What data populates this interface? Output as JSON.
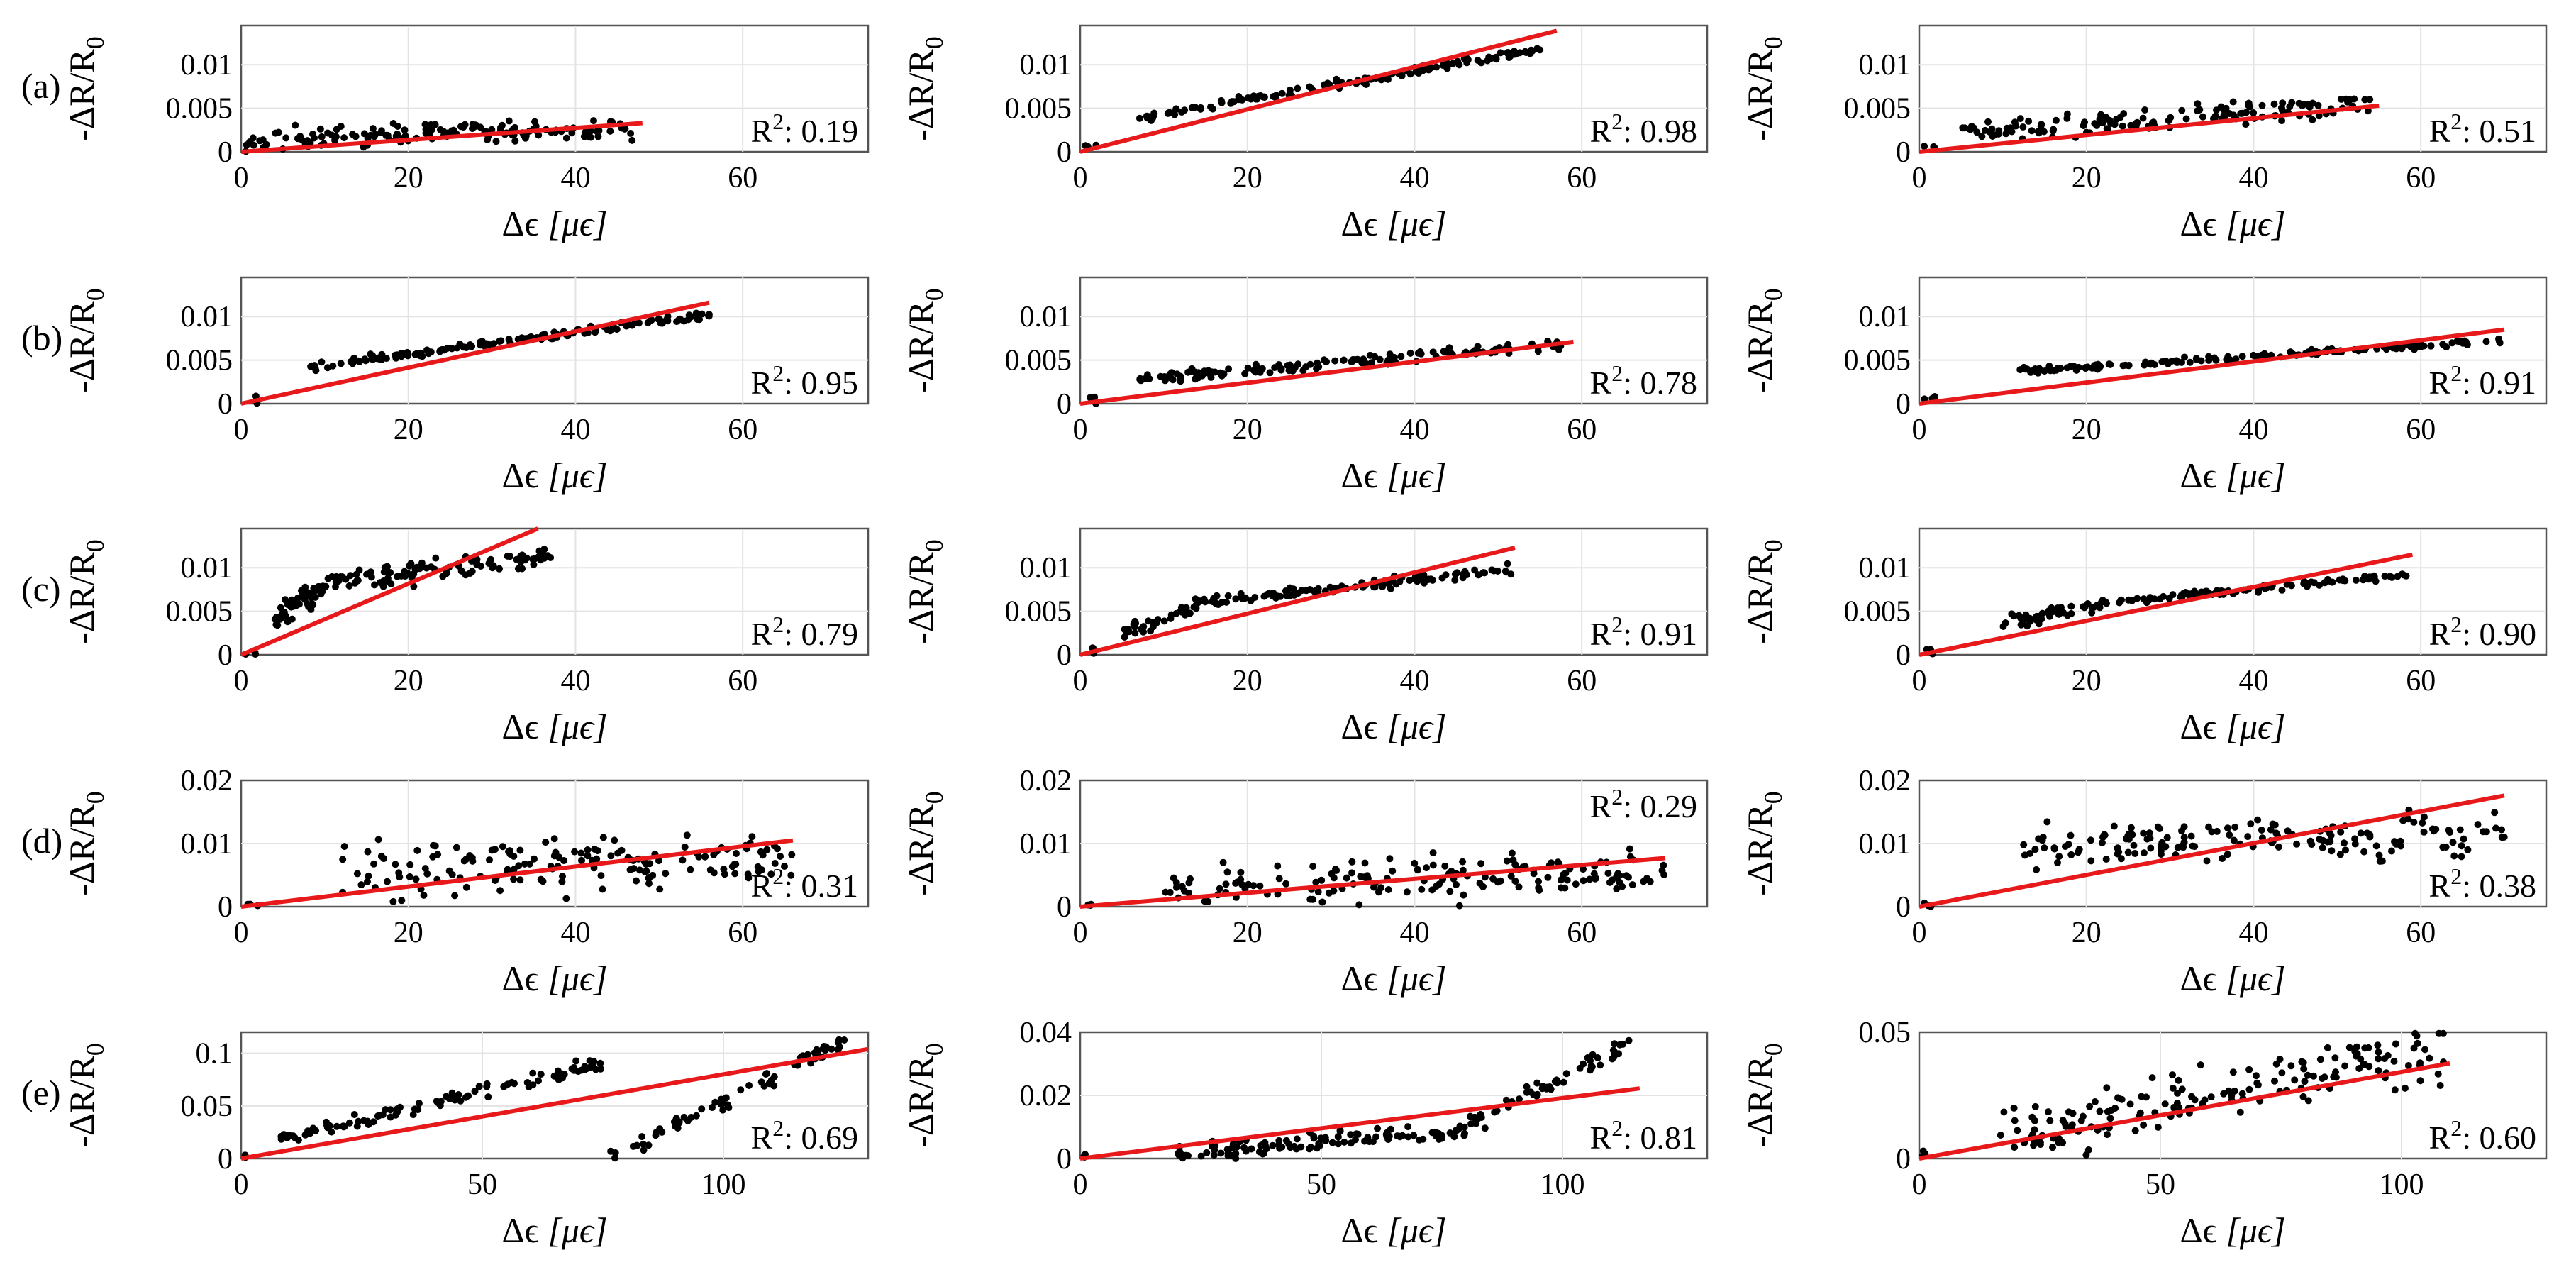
{
  "row_labels": [
    "(a)",
    "(b)",
    "(c)",
    "(d)",
    "(e)"
  ],
  "ylabel_prefix": "-ΔR/R",
  "ylabel_sub": "0",
  "xlabel_prefix": "Δϵ ",
  "xlabel_unit": "[μϵ]",
  "r2_prefix": "R",
  "r2_exp": "2",
  "colors": {
    "points": "#000000",
    "fit": "#e8191b",
    "frame": "#555555",
    "grid": "#e3e3e3"
  },
  "chart_data": [
    {
      "panel": "a1",
      "type": "scatter",
      "row": "(a)",
      "xlim": [
        0,
        75
      ],
      "ylim": [
        0,
        0.0145
      ],
      "xticks": [
        0,
        20,
        40,
        60
      ],
      "xtick_labels": [
        "0",
        "20",
        "40",
        "60"
      ],
      "yticks": [
        0,
        0.005,
        0.01
      ],
      "ytick_labels": [
        "0",
        "0.005",
        "0.01"
      ],
      "r2": "0.19",
      "r2_pos": "bottom-right",
      "fit": {
        "x": [
          0,
          48
        ],
        "y": [
          0,
          0.0033
        ]
      },
      "cloud": {
        "seed": 11,
        "n": 150,
        "segs": [
          {
            "x0": 1,
            "x1": 47,
            "y0": 0.0015,
            "y1": 0.0025,
            "noise": 0.0012,
            "w": 1
          }
        ]
      }
    },
    {
      "panel": "a2",
      "type": "scatter",
      "row": "(a)",
      "xlim": [
        0,
        75
      ],
      "ylim": [
        0,
        0.0145
      ],
      "xticks": [
        0,
        20,
        40,
        60
      ],
      "xtick_labels": [
        "0",
        "20",
        "40",
        "60"
      ],
      "yticks": [
        0,
        0.005,
        0.01
      ],
      "ytick_labels": [
        "0",
        "0.005",
        "0.01"
      ],
      "r2": "0.98",
      "r2_pos": "bottom-right",
      "fit": {
        "x": [
          0,
          57
        ],
        "y": [
          0,
          0.0139
        ]
      },
      "cloud": {
        "seed": 12,
        "n": 150,
        "segs": [
          {
            "x0": 7,
            "x1": 56,
            "y0": 0.0039,
            "y1": 0.0119,
            "noise": 0.00045,
            "w": 1
          }
        ]
      }
    },
    {
      "panel": "a3",
      "type": "scatter",
      "row": "(a)",
      "xlim": [
        0,
        75
      ],
      "ylim": [
        0,
        0.0145
      ],
      "xticks": [
        0,
        20,
        40,
        60
      ],
      "xtick_labels": [
        "0",
        "20",
        "40",
        "60"
      ],
      "yticks": [
        0,
        0.005,
        0.01
      ],
      "ytick_labels": [
        "0",
        "0.005",
        "0.01"
      ],
      "r2": "0.51",
      "r2_pos": "bottom-right",
      "fit": {
        "x": [
          0,
          55
        ],
        "y": [
          0,
          0.0053
        ]
      },
      "cloud": {
        "seed": 13,
        "n": 150,
        "segs": [
          {
            "x0": 5,
            "x1": 54,
            "y0": 0.0022,
            "y1": 0.0055,
            "noise": 0.0012,
            "w": 1
          }
        ]
      }
    },
    {
      "panel": "b1",
      "type": "scatter",
      "row": "(b)",
      "xlim": [
        0,
        75
      ],
      "ylim": [
        0,
        0.0145
      ],
      "xticks": [
        0,
        20,
        40,
        60
      ],
      "xtick_labels": [
        "0",
        "20",
        "40",
        "60"
      ],
      "yticks": [
        0,
        0.005,
        0.01
      ],
      "ytick_labels": [
        "0",
        "0.005",
        "0.01"
      ],
      "r2": "0.95",
      "r2_pos": "bottom-right",
      "fit": {
        "x": [
          0,
          56
        ],
        "y": [
          0,
          0.0116
        ]
      },
      "cloud": {
        "seed": 21,
        "n": 150,
        "segs": [
          {
            "x0": 8,
            "x1": 56,
            "y0": 0.0042,
            "y1": 0.0102,
            "noise": 0.00045,
            "w": 1
          }
        ]
      }
    },
    {
      "panel": "b2",
      "type": "scatter",
      "row": "(b)",
      "xlim": [
        0,
        75
      ],
      "ylim": [
        0,
        0.0145
      ],
      "xticks": [
        0,
        20,
        40,
        60
      ],
      "xtick_labels": [
        "0",
        "20",
        "40",
        "60"
      ],
      "yticks": [
        0,
        0.005,
        0.01
      ],
      "ytick_labels": [
        "0",
        "0.005",
        "0.01"
      ],
      "r2": "0.78",
      "r2_pos": "bottom-right",
      "fit": {
        "x": [
          0,
          59
        ],
        "y": [
          0,
          0.0071
        ]
      },
      "cloud": {
        "seed": 22,
        "n": 150,
        "segs": [
          {
            "x0": 7,
            "x1": 58,
            "y0": 0.0028,
            "y1": 0.0068,
            "noise": 0.0006,
            "w": 1
          }
        ]
      }
    },
    {
      "panel": "b3",
      "type": "scatter",
      "row": "(b)",
      "xlim": [
        0,
        75
      ],
      "ylim": [
        0,
        0.0145
      ],
      "xticks": [
        0,
        20,
        40,
        60
      ],
      "xtick_labels": [
        "0",
        "20",
        "40",
        "60"
      ],
      "yticks": [
        0,
        0.005,
        0.01
      ],
      "ytick_labels": [
        "0",
        "0.005",
        "0.01"
      ],
      "r2": "0.91",
      "r2_pos": "bottom-right",
      "fit": {
        "x": [
          0,
          70
        ],
        "y": [
          0,
          0.0085
        ]
      },
      "cloud": {
        "seed": 23,
        "n": 150,
        "segs": [
          {
            "x0": 12,
            "x1": 70,
            "y0": 0.0037,
            "y1": 0.0073,
            "noise": 0.00035,
            "w": 1
          }
        ]
      }
    },
    {
      "panel": "c1",
      "type": "scatter",
      "row": "(c)",
      "xlim": [
        0,
        75
      ],
      "ylim": [
        0,
        0.0145
      ],
      "xticks": [
        0,
        20,
        40,
        60
      ],
      "xtick_labels": [
        "0",
        "20",
        "40",
        "60"
      ],
      "yticks": [
        0,
        0.005,
        0.01
      ],
      "ytick_labels": [
        "0",
        "0.005",
        "0.01"
      ],
      "r2": "0.79",
      "r2_pos": "bottom-right",
      "fit": {
        "x": [
          0,
          35.5
        ],
        "y": [
          0,
          0.0145
        ]
      },
      "cloud": {
        "seed": 31,
        "n": 150,
        "segs": [
          {
            "x0": 4,
            "x1": 12,
            "y0": 0.004,
            "y1": 0.009,
            "noise": 0.0012,
            "w": 0.45
          },
          {
            "x0": 12,
            "x1": 38,
            "y0": 0.0085,
            "y1": 0.0115,
            "noise": 0.0012,
            "w": 0.55
          }
        ]
      }
    },
    {
      "panel": "c2",
      "type": "scatter",
      "row": "(c)",
      "xlim": [
        0,
        75
      ],
      "ylim": [
        0,
        0.0145
      ],
      "xticks": [
        0,
        20,
        40,
        60
      ],
      "xtick_labels": [
        "0",
        "20",
        "40",
        "60"
      ],
      "yticks": [
        0,
        0.005,
        0.01
      ],
      "ytick_labels": [
        "0",
        "0.005",
        "0.01"
      ],
      "r2": "0.91",
      "r2_pos": "bottom-right",
      "fit": {
        "x": [
          0,
          52
        ],
        "y": [
          0,
          0.0123
        ]
      },
      "cloud": {
        "seed": 32,
        "n": 150,
        "segs": [
          {
            "x0": 5,
            "x1": 14,
            "y0": 0.0025,
            "y1": 0.0055,
            "noise": 0.0008,
            "w": 0.3
          },
          {
            "x0": 14,
            "x1": 52,
            "y0": 0.006,
            "y1": 0.0098,
            "noise": 0.0006,
            "w": 0.7
          }
        ]
      }
    },
    {
      "panel": "c3",
      "type": "scatter",
      "row": "(c)",
      "xlim": [
        0,
        75
      ],
      "ylim": [
        0,
        0.0145
      ],
      "xticks": [
        0,
        20,
        40,
        60
      ],
      "xtick_labels": [
        "0",
        "20",
        "40",
        "60"
      ],
      "yticks": [
        0,
        0.005,
        0.01
      ],
      "ytick_labels": [
        "0",
        "0.005",
        "0.01"
      ],
      "r2": "0.90",
      "r2_pos": "bottom-right",
      "fit": {
        "x": [
          0,
          59
        ],
        "y": [
          0,
          0.0115
        ]
      },
      "cloud": {
        "seed": 33,
        "n": 150,
        "segs": [
          {
            "x0": 10,
            "x1": 22,
            "y0": 0.0035,
            "y1": 0.006,
            "noise": 0.0008,
            "w": 0.3
          },
          {
            "x0": 22,
            "x1": 59,
            "y0": 0.006,
            "y1": 0.0092,
            "noise": 0.0004,
            "w": 0.7
          }
        ]
      }
    },
    {
      "panel": "d1",
      "type": "scatter",
      "row": "(d)",
      "xlim": [
        0,
        75
      ],
      "ylim": [
        0,
        0.02
      ],
      "xticks": [
        0,
        20,
        40,
        60
      ],
      "xtick_labels": [
        "0",
        "20",
        "40",
        "60"
      ],
      "yticks": [
        0,
        0.01,
        0.02
      ],
      "ytick_labels": [
        "0",
        "0.01",
        "0.02"
      ],
      "r2": "0.31",
      "r2_pos": "bottom-right",
      "fit": {
        "x": [
          0,
          66
        ],
        "y": [
          0,
          0.0105
        ]
      },
      "cloud": {
        "seed": 41,
        "n": 160,
        "segs": [
          {
            "x0": 12,
            "x1": 66,
            "y0": 0.0055,
            "y1": 0.008,
            "noise": 0.0042,
            "w": 1
          }
        ]
      }
    },
    {
      "panel": "d2",
      "type": "scatter",
      "row": "(d)",
      "xlim": [
        0,
        75
      ],
      "ylim": [
        0,
        0.02
      ],
      "xticks": [
        0,
        20,
        40,
        60
      ],
      "xtick_labels": [
        "0",
        "20",
        "40",
        "60"
      ],
      "yticks": [
        0,
        0.01,
        0.02
      ],
      "ytick_labels": [
        "0",
        "0.01",
        "0.02"
      ],
      "r2": "0.29",
      "r2_pos": "top-right",
      "fit": {
        "x": [
          0,
          70
        ],
        "y": [
          0,
          0.0077
        ]
      },
      "cloud": {
        "seed": 42,
        "n": 160,
        "segs": [
          {
            "x0": 10,
            "x1": 70,
            "y0": 0.003,
            "y1": 0.0055,
            "noise": 0.0035,
            "w": 1
          }
        ]
      }
    },
    {
      "panel": "d3",
      "type": "scatter",
      "row": "(d)",
      "xlim": [
        0,
        75
      ],
      "ylim": [
        0,
        0.02
      ],
      "xticks": [
        0,
        20,
        40,
        60
      ],
      "xtick_labels": [
        "0",
        "20",
        "40",
        "60"
      ],
      "yticks": [
        0,
        0.01,
        0.02
      ],
      "ytick_labels": [
        "0",
        "0.01",
        "0.02"
      ],
      "r2": "0.38",
      "r2_pos": "bottom-right",
      "fit": {
        "x": [
          0,
          70
        ],
        "y": [
          0,
          0.0176
        ]
      },
      "cloud": {
        "seed": 43,
        "n": 160,
        "segs": [
          {
            "x0": 12,
            "x1": 70,
            "y0": 0.009,
            "y1": 0.012,
            "noise": 0.0035,
            "w": 1
          }
        ]
      }
    },
    {
      "panel": "e1",
      "type": "scatter",
      "row": "(e)",
      "xlim": [
        0,
        130
      ],
      "ylim": [
        0,
        0.12
      ],
      "xticks": [
        0,
        50,
        100
      ],
      "xtick_labels": [
        "0",
        "50",
        "100"
      ],
      "yticks": [
        0,
        0.05,
        0.1
      ],
      "ytick_labels": [
        "0",
        "0.05",
        "0.1"
      ],
      "r2": "0.69",
      "r2_pos": "bottom-right",
      "fit": {
        "x": [
          0,
          130
        ],
        "y": [
          0,
          0.104
        ]
      },
      "cloud": {
        "seed": 51,
        "n": 170,
        "segs": [
          {
            "x0": 8,
            "x1": 75,
            "y0": 0.018,
            "y1": 0.09,
            "noise": 0.006,
            "w": 0.55
          },
          {
            "x0": 76,
            "x1": 128,
            "y0": 0.0,
            "y1": 0.118,
            "noise": 0.008,
            "w": 0.45
          }
        ]
      }
    },
    {
      "panel": "e2",
      "type": "scatter",
      "row": "(e)",
      "xlim": [
        0,
        130
      ],
      "ylim": [
        0,
        0.04
      ],
      "xticks": [
        0,
        50,
        100
      ],
      "xtick_labels": [
        "0",
        "50",
        "100"
      ],
      "yticks": [
        0,
        0.02,
        0.04
      ],
      "ytick_labels": [
        "0",
        "0.02",
        "0.04"
      ],
      "r2": "0.81",
      "r2_pos": "bottom-right",
      "fit": {
        "x": [
          0,
          116
        ],
        "y": [
          0,
          0.0222
        ]
      },
      "cloud": {
        "seed": 52,
        "n": 170,
        "segs": [
          {
            "x0": 20,
            "x1": 80,
            "y0": 0.002,
            "y1": 0.009,
            "noise": 0.0028,
            "w": 0.65
          },
          {
            "x0": 80,
            "x1": 114,
            "y0": 0.01,
            "y1": 0.036,
            "noise": 0.003,
            "w": 0.35
          }
        ]
      }
    },
    {
      "panel": "e3",
      "type": "scatter",
      "row": "(e)",
      "xlim": [
        0,
        130
      ],
      "ylim": [
        0,
        0.05
      ],
      "xticks": [
        0,
        50,
        100
      ],
      "xtick_labels": [
        "0",
        "50",
        "100"
      ],
      "yticks": [
        0,
        0.05
      ],
      "ytick_labels": [
        "0",
        "0.05"
      ],
      "r2": "0.60",
      "r2_pos": "bottom-right",
      "fit": {
        "x": [
          0,
          110
        ],
        "y": [
          0,
          0.0377
        ]
      },
      "cloud": {
        "seed": 53,
        "n": 170,
        "segs": [
          {
            "x0": 15,
            "x1": 110,
            "y0": 0.008,
            "y1": 0.045,
            "noise": 0.011,
            "w": 1
          }
        ]
      }
    }
  ]
}
